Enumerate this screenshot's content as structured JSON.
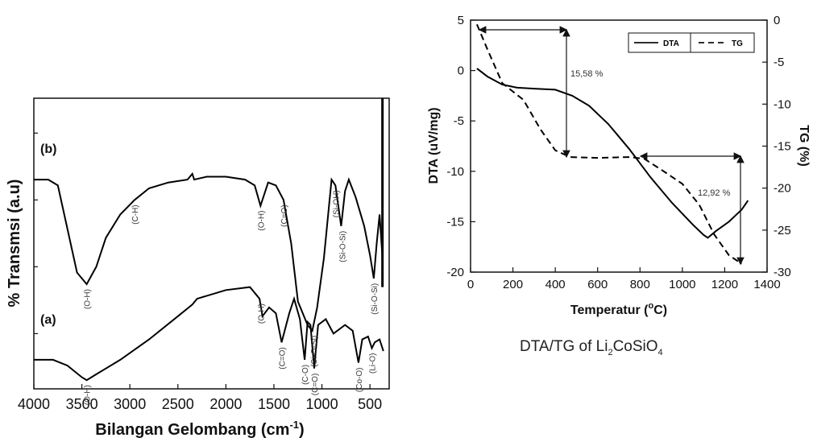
{
  "chart_data": [
    {
      "type": "line",
      "title": "",
      "xlabel_main": "Bilangan Gelombang (cm",
      "xlabel_sup": "-1",
      "xlabel_end": ")",
      "ylabel": "% Transmsi (a.u)",
      "xlim": [
        4000,
        300
      ],
      "x_ticks": [
        "4000",
        "3500",
        "3000",
        "2500",
        "2000",
        "1500",
        "1000",
        "500"
      ],
      "series": [
        {
          "name": "(b)",
          "points": [
            [
              4000,
              0.72
            ],
            [
              3850,
              0.72
            ],
            [
              3750,
              0.7
            ],
            [
              3650,
              0.55
            ],
            [
              3550,
              0.4
            ],
            [
              3450,
              0.36
            ],
            [
              3350,
              0.42
            ],
            [
              3250,
              0.52
            ],
            [
              3100,
              0.6
            ],
            [
              2950,
              0.65
            ],
            [
              2800,
              0.69
            ],
            [
              2600,
              0.71
            ],
            [
              2400,
              0.72
            ],
            [
              2350,
              0.74
            ],
            [
              2330,
              0.72
            ],
            [
              2200,
              0.73
            ],
            [
              2000,
              0.73
            ],
            [
              1800,
              0.72
            ],
            [
              1700,
              0.7
            ],
            [
              1640,
              0.63
            ],
            [
              1560,
              0.71
            ],
            [
              1480,
              0.7
            ],
            [
              1400,
              0.65
            ],
            [
              1320,
              0.5
            ],
            [
              1250,
              0.3
            ],
            [
              1150,
              0.22
            ],
            [
              1100,
              0.2
            ],
            [
              1050,
              0.28
            ],
            [
              980,
              0.45
            ],
            [
              900,
              0.72
            ],
            [
              860,
              0.7
            ],
            [
              800,
              0.56
            ],
            [
              760,
              0.68
            ],
            [
              720,
              0.72
            ],
            [
              650,
              0.66
            ],
            [
              560,
              0.56
            ],
            [
              500,
              0.46
            ],
            [
              460,
              0.38
            ],
            [
              430,
              0.5
            ],
            [
              400,
              0.6
            ],
            [
              370,
              0.45
            ]
          ]
        },
        {
          "name": "(a)",
          "points": [
            [
              4000,
              0.1
            ],
            [
              3800,
              0.1
            ],
            [
              3650,
              0.08
            ],
            [
              3500,
              0.04
            ],
            [
              3450,
              0.03
            ],
            [
              3350,
              0.05
            ],
            [
              3100,
              0.1
            ],
            [
              2800,
              0.17
            ],
            [
              2500,
              0.25
            ],
            [
              2350,
              0.29
            ],
            [
              2300,
              0.31
            ],
            [
              2000,
              0.34
            ],
            [
              1750,
              0.35
            ],
            [
              1650,
              0.31
            ],
            [
              1620,
              0.25
            ],
            [
              1550,
              0.28
            ],
            [
              1480,
              0.26
            ],
            [
              1420,
              0.16
            ],
            [
              1340,
              0.26
            ],
            [
              1290,
              0.31
            ],
            [
              1230,
              0.24
            ],
            [
              1180,
              0.1
            ],
            [
              1150,
              0.23
            ],
            [
              1120,
              0.22
            ],
            [
              1080,
              0.07
            ],
            [
              1040,
              0.22
            ],
            [
              960,
              0.24
            ],
            [
              880,
              0.19
            ],
            [
              760,
              0.22
            ],
            [
              680,
              0.2
            ],
            [
              620,
              0.09
            ],
            [
              580,
              0.17
            ],
            [
              520,
              0.18
            ],
            [
              480,
              0.14
            ],
            [
              450,
              0.16
            ],
            [
              400,
              0.17
            ],
            [
              360,
              0.13
            ]
          ]
        }
      ],
      "annotations": [
        {
          "text": "(O-H)",
          "series": "(b)",
          "x": 3450
        },
        {
          "text": "(C-H)",
          "series": "(b)",
          "x": 2950
        },
        {
          "text": "(O-H)",
          "series": "(b)",
          "x": 1640
        },
        {
          "text": "(C=O)",
          "series": "(b)",
          "x": 1400
        },
        {
          "text": "(Si-O-Si)",
          "series": "(b)",
          "x": 1090
        },
        {
          "text": "(Si-OH)",
          "series": "(b)",
          "x": 860
        },
        {
          "text": "(Si-O-Si)",
          "series": "(b)",
          "x": 790
        },
        {
          "text": "(Si-O-Si)",
          "series": "(b)",
          "x": 460
        },
        {
          "text": "(O-H)",
          "series": "(a)",
          "x": 3450
        },
        {
          "text": "(O-H)",
          "series": "(a)",
          "x": 1640
        },
        {
          "text": "(C=O)",
          "series": "(a)",
          "x": 1420
        },
        {
          "text": "(C-O)",
          "series": "(a)",
          "x": 1180
        },
        {
          "text": "(C=O)",
          "series": "(a)",
          "x": 1080
        },
        {
          "text": "(Co-O)",
          "series": "(a)",
          "x": 620
        },
        {
          "text": "(Li-O)",
          "series": "(a)",
          "x": 480
        }
      ]
    },
    {
      "type": "line",
      "title": "",
      "xlabel_main": "Temperatur (",
      "xlabel_sup": "o",
      "xlabel_end": "C)",
      "ylabel_left": "DTA (uV/mg)",
      "ylabel_right": "TG (%)",
      "xlim": [
        0,
        1400
      ],
      "ylim_left": [
        -20,
        5
      ],
      "ylim_right": [
        -30,
        0
      ],
      "x_ticks": [
        "0",
        "200",
        "400",
        "600",
        "800",
        "1000",
        "1200",
        "1400"
      ],
      "y_left_ticks": [
        "5",
        "0",
        "-5",
        "-10",
        "-15",
        "-20"
      ],
      "y_right_ticks": [
        "0",
        "-5",
        "-10",
        "-15",
        "-20",
        "-25",
        "-30"
      ],
      "legend_position": "top-right",
      "legend": [
        {
          "label": "DTA",
          "style": "solid"
        },
        {
          "label": "TG",
          "style": "dashed"
        }
      ],
      "series": [
        {
          "name": "DTA",
          "axis": "left",
          "style": "solid",
          "points": [
            [
              30,
              0.2
            ],
            [
              80,
              -0.6
            ],
            [
              150,
              -1.4
            ],
            [
              220,
              -1.7
            ],
            [
              300,
              -1.8
            ],
            [
              400,
              -1.9
            ],
            [
              480,
              -2.5
            ],
            [
              560,
              -3.5
            ],
            [
              650,
              -5.3
            ],
            [
              750,
              -7.8
            ],
            [
              850,
              -10.6
            ],
            [
              950,
              -13.1
            ],
            [
              1050,
              -15.3
            ],
            [
              1100,
              -16.3
            ],
            [
              1120,
              -16.6
            ],
            [
              1160,
              -15.9
            ],
            [
              1220,
              -15.0
            ],
            [
              1280,
              -13.8
            ],
            [
              1310,
              -12.9
            ]
          ]
        },
        {
          "name": "TG",
          "axis": "right",
          "style": "dashed",
          "points": [
            [
              30,
              -0.5
            ],
            [
              80,
              -3.5
            ],
            [
              150,
              -7.5
            ],
            [
              250,
              -9.5
            ],
            [
              330,
              -13.0
            ],
            [
              400,
              -15.5
            ],
            [
              470,
              -16.3
            ],
            [
              600,
              -16.4
            ],
            [
              750,
              -16.3
            ],
            [
              820,
              -16.5
            ],
            [
              900,
              -17.8
            ],
            [
              1000,
              -19.5
            ],
            [
              1080,
              -22.0
            ],
            [
              1150,
              -25.5
            ],
            [
              1220,
              -28.0
            ],
            [
              1280,
              -29.0
            ]
          ]
        }
      ],
      "annotations": [
        {
          "text": "15,58 %"
        },
        {
          "text": "12,92 %"
        }
      ],
      "caption": {
        "prefix": "DTA/TG of Li",
        "sub1": "2",
        "mid": "CoSiO",
        "sub2": "4"
      }
    }
  ]
}
